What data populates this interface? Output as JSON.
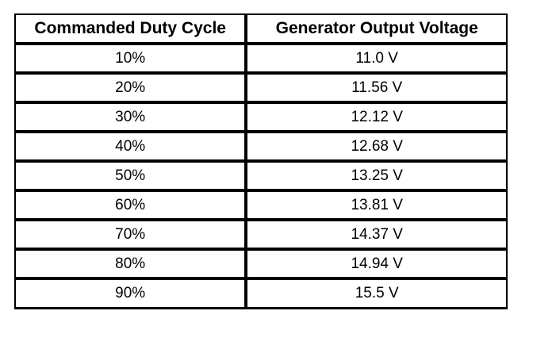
{
  "table": {
    "headers": [
      "Commanded Duty Cycle",
      "Generator Output Voltage"
    ],
    "rows": [
      [
        "10%",
        "11.0 V"
      ],
      [
        "20%",
        "11.56 V"
      ],
      [
        "30%",
        "12.12 V"
      ],
      [
        "40%",
        "12.68 V"
      ],
      [
        "50%",
        "13.25 V"
      ],
      [
        "60%",
        "13.81 V"
      ],
      [
        "70%",
        "14.37 V"
      ],
      [
        "80%",
        "14.94 V"
      ],
      [
        "90%",
        "15.5 V"
      ]
    ]
  },
  "colors": {
    "border": "#000000",
    "background": "#ffffff",
    "text": "#000000"
  },
  "chart_data": {
    "type": "table",
    "title": "",
    "columns": [
      "Commanded Duty Cycle",
      "Generator Output Voltage"
    ],
    "categories": [
      "10%",
      "20%",
      "30%",
      "40%",
      "50%",
      "60%",
      "70%",
      "80%",
      "90%"
    ],
    "duty_cycle_percent": [
      10,
      20,
      30,
      40,
      50,
      60,
      70,
      80,
      90
    ],
    "output_voltage_v": [
      11.0,
      11.56,
      12.12,
      12.68,
      13.25,
      13.81,
      14.37,
      14.94,
      15.5
    ]
  }
}
